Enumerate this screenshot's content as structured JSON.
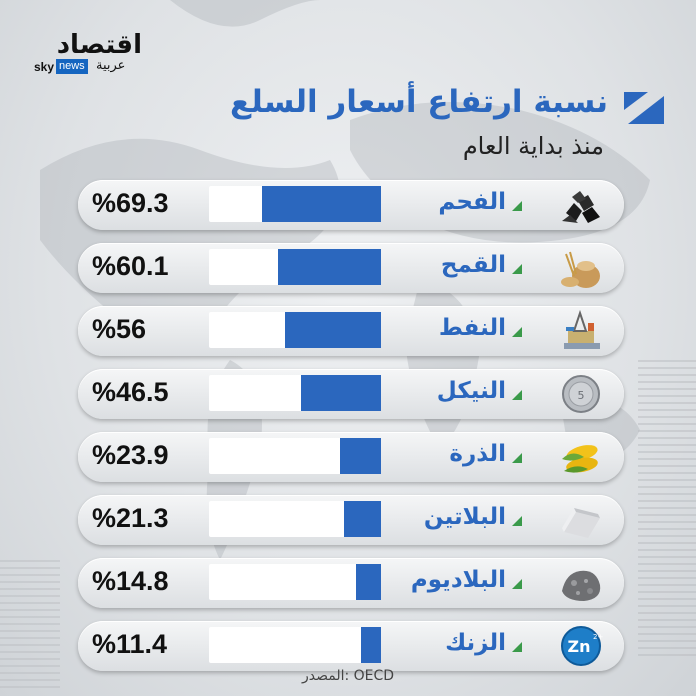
{
  "branding": {
    "logo_arabic": "اقتصاد",
    "logo_sky": "sky",
    "logo_news": "news",
    "logo_arabia": "عربية"
  },
  "header": {
    "title": "نسبة ارتفاع أسعار السلع",
    "subtitle": "منذ بداية العام"
  },
  "colors": {
    "accent": "#2b67be",
    "track": "#ffffff",
    "text": "#111111"
  },
  "chart_data": {
    "type": "bar",
    "title": "نسبة ارتفاع أسعار السلع",
    "subtitle": "منذ بداية العام",
    "categories": [
      "الفحم",
      "القمح",
      "النفط",
      "النيكل",
      "الذرة",
      "البلاتين",
      "البلاديوم",
      "الزنك"
    ],
    "values": [
      69.3,
      60.1,
      56,
      46.5,
      23.9,
      21.3,
      14.8,
      11.4
    ],
    "value_labels": [
      "%69.3",
      "%60.1",
      "%56",
      "%46.5",
      "%23.9",
      "%21.3",
      "%14.8",
      "%11.4"
    ],
    "icons": [
      "coal-icon",
      "wheat-sack-icon",
      "oil-rig-icon",
      "nickel-coin-icon",
      "corn-icon",
      "platinum-bar-icon",
      "palladium-ore-icon",
      "zinc-badge-icon"
    ],
    "xlim": [
      0,
      100
    ],
    "orientation": "horizontal"
  },
  "footer": {
    "source": "المصدر: OECD"
  }
}
